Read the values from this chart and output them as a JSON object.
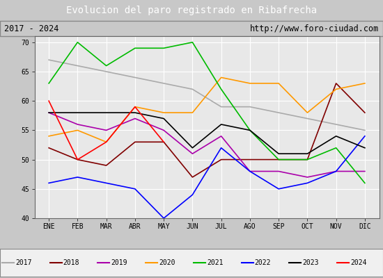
{
  "title": "Evolucion del paro registrado en Ribafrecha",
  "subtitle_left": "2017 - 2024",
  "subtitle_right": "http://www.foro-ciudad.com",
  "months": [
    "ENE",
    "FEB",
    "MAR",
    "ABR",
    "MAY",
    "JUN",
    "JUL",
    "AGO",
    "SEP",
    "OCT",
    "NOV",
    "DIC"
  ],
  "ylim": [
    40,
    71
  ],
  "yticks": [
    40,
    45,
    50,
    55,
    60,
    65,
    70
  ],
  "series": {
    "2017": {
      "color": "#aaaaaa",
      "values": [
        67,
        66,
        65,
        64,
        63,
        62,
        59,
        59,
        58,
        57,
        56,
        55
      ]
    },
    "2018": {
      "color": "#800000",
      "values": [
        52,
        50,
        49,
        53,
        53,
        47,
        50,
        50,
        50,
        50,
        63,
        58
      ]
    },
    "2019": {
      "color": "#aa00aa",
      "values": [
        58,
        56,
        55,
        57,
        55,
        51,
        54,
        48,
        48,
        47,
        48,
        48
      ]
    },
    "2020": {
      "color": "#ff9900",
      "values": [
        54,
        55,
        53,
        59,
        58,
        58,
        64,
        63,
        63,
        58,
        62,
        63
      ]
    },
    "2021": {
      "color": "#00bb00",
      "values": [
        63,
        70,
        66,
        69,
        69,
        70,
        62,
        55,
        50,
        50,
        52,
        46
      ]
    },
    "2022": {
      "color": "#0000ff",
      "values": [
        46,
        47,
        46,
        45,
        40,
        44,
        52,
        48,
        45,
        46,
        48,
        54
      ]
    },
    "2023": {
      "color": "#000000",
      "values": [
        58,
        58,
        58,
        58,
        57,
        52,
        56,
        55,
        51,
        51,
        54,
        52
      ]
    },
    "2024": {
      "color": "#ff0000",
      "values": [
        60,
        50,
        53,
        59,
        53,
        null,
        null,
        null,
        null,
        null,
        null,
        null
      ]
    }
  },
  "title_bg": "#4472c4",
  "title_color": "#ffffff",
  "subtitle_bg": "#d4d4d4",
  "plot_bg": "#e8e8e8",
  "grid_color": "#ffffff",
  "legend_bg": "#f0f0f0",
  "fig_bg": "#c8c8c8"
}
